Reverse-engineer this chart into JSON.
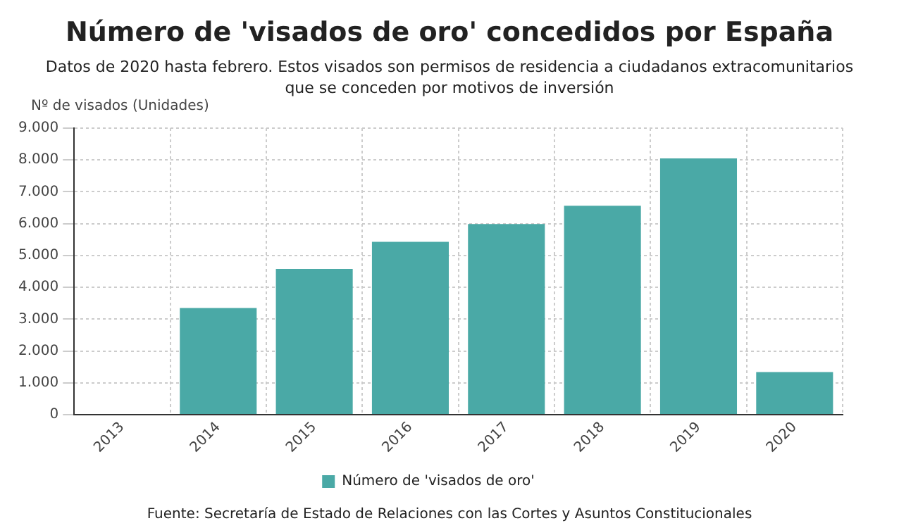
{
  "chart_data": {
    "type": "bar",
    "title": "Número de 'visados de oro' concedidos por España",
    "subtitle": "Datos de 2020 hasta febrero. Estos visados son permisos de residencia a ciudadanos extracomunitarios que se conceden por motivos de inversión",
    "ylabel": "Nº de visados (Unidades)",
    "categories": [
      "2013",
      "2014",
      "2015",
      "2016",
      "2017",
      "2018",
      "2019",
      "2020"
    ],
    "series": [
      {
        "name": "Número de 'visados de oro'",
        "color": "#4aa9a6",
        "values": [
          null,
          3350,
          4580,
          5430,
          5990,
          6560,
          8050,
          1340
        ]
      }
    ],
    "ylim": [
      0,
      9000
    ],
    "yticks": [
      0,
      {
        "value": 1000,
        "label": "1.000"
      },
      {
        "value": 2000,
        "label": "2.000"
      },
      {
        "value": 3000,
        "label": "3.000"
      },
      {
        "value": 4000,
        "label": "4.000"
      },
      {
        "value": 5000,
        "label": "5.000"
      },
      {
        "value": 6000,
        "label": "6.000"
      },
      {
        "value": 7000,
        "label": "7.000"
      },
      {
        "value": 8000,
        "label": "8.000"
      },
      {
        "value": 9000,
        "label": "9.000"
      }
    ],
    "grid": true,
    "legend": "bottom",
    "annotations": [
      "Fuente: Secretaría de Estado de Relaciones con las Cortes y Asuntos Constitucionales"
    ]
  }
}
